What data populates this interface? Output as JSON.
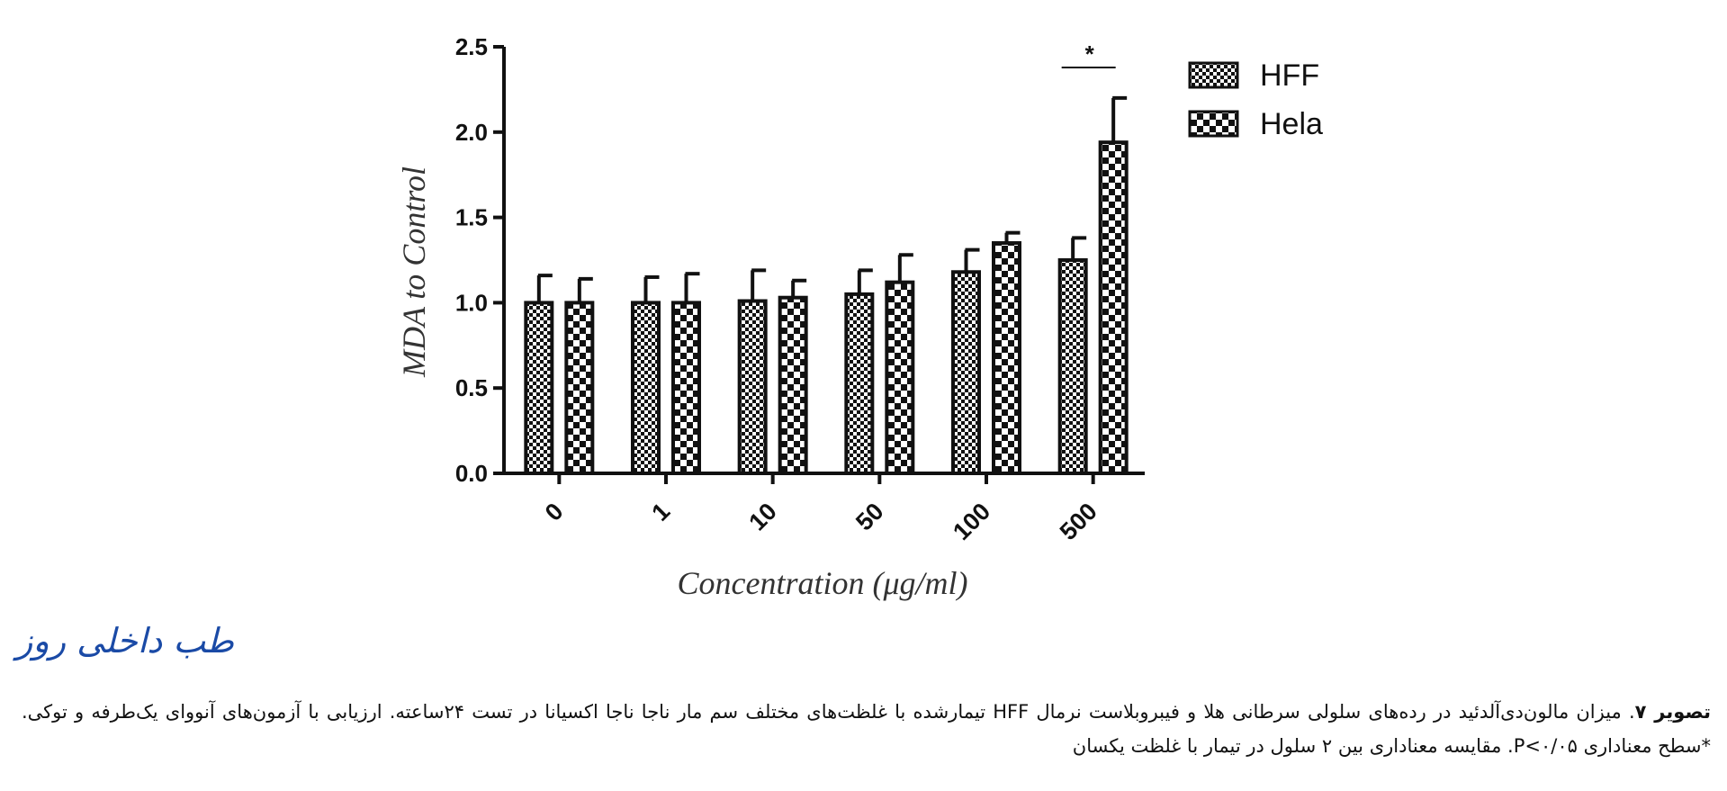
{
  "chart_data": {
    "type": "bar",
    "categories": [
      "0",
      "1",
      "10",
      "50",
      "100",
      "500"
    ],
    "series": [
      {
        "name": "HFF",
        "values": [
          1.0,
          1.0,
          1.01,
          1.05,
          1.18,
          1.25
        ],
        "errors": [
          0.16,
          0.15,
          0.18,
          0.14,
          0.13,
          0.13
        ],
        "pattern": "fine-checker"
      },
      {
        "name": "Hela",
        "values": [
          1.0,
          1.0,
          1.03,
          1.12,
          1.35,
          1.94
        ],
        "errors": [
          0.14,
          0.17,
          0.1,
          0.16,
          0.06,
          0.26
        ],
        "pattern": "coarse-checker"
      }
    ],
    "xlabel": "Concentration (μg/ml)",
    "ylabel": "MDA to Control",
    "ylim": [
      0,
      2.5
    ],
    "yticks": [
      "0.0",
      "0.5",
      "1.0",
      "1.5",
      "2.0",
      "2.5"
    ],
    "grid": false,
    "legend_position": "top-right",
    "annotations": [
      {
        "category": "500",
        "text": "*"
      }
    ]
  },
  "logo_text": "طب داخلی روز",
  "caption": {
    "label": "تصویر ۷",
    "text": ". میزان مالون‌دی‌آلدئید در رده‌های سلولی سرطانی هلا و فیبروبلاست نرمال HFF تیمارشده با غلظت‌های مختلف سم مار ناجا ناجا اکسیانا در تست ۲۴ساعته. ارزیابی با آزمون‌های آنووای یک‌طرفه و توکی. *سطح معناداری P<۰/۰۵. مقایسه معناداری بین ۲ سلول در تیمار با غلظت یکسان"
  }
}
